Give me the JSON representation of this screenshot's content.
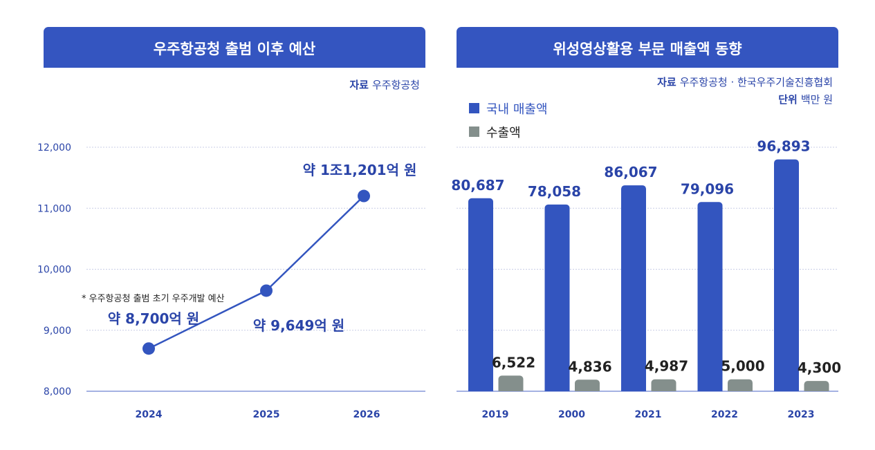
{
  "colors": {
    "primary": "#3355bf",
    "header": "#3455c0",
    "gray": "#848f8c",
    "text_blue": "#2a44a8",
    "dark": "#222222",
    "grid": "#c8cde6"
  },
  "chart_data": [
    {
      "type": "line",
      "title": "우주항공청 출범 이후 예산",
      "source_label": "자료",
      "source": "우주항공청",
      "categories": [
        "2024",
        "2025",
        "2026"
      ],
      "values": [
        8700,
        9649,
        11201
      ],
      "yticks": [
        "8,000",
        "9,000",
        "10,000",
        "11,000",
        "12,000"
      ],
      "ylim": [
        8000,
        12000
      ],
      "data_labels": [
        "약 8,700억 원",
        "약 9,649억 원",
        "약 1조1,201억 원"
      ],
      "annotation": "* 우주항공청 출범 초기 우주개발 예산",
      "grid": true
    },
    {
      "type": "bar",
      "title": "위성영상활용 부문 매출액 동향",
      "source_label": "자료",
      "source": "우주항공청 · 한국우주기술진흥협회",
      "unit_label": "단위",
      "unit": "백만 원",
      "categories": [
        "2019",
        "2000",
        "2021",
        "2022",
        "2023"
      ],
      "series": [
        {
          "name": "국내 매출액",
          "values": [
            80687,
            78058,
            86067,
            79096,
            96893
          ],
          "labels": [
            "80,687",
            "78,058",
            "86,067",
            "79,096",
            "96,893"
          ]
        },
        {
          "name": "수출액",
          "values": [
            6522,
            4836,
            4987,
            5000,
            4300
          ],
          "labels": [
            "6,522",
            "4,836",
            "4,987",
            "5,000",
            "4,300"
          ]
        }
      ],
      "ylim": [
        0,
        102000
      ],
      "legend": "top-left",
      "grid": true
    }
  ]
}
